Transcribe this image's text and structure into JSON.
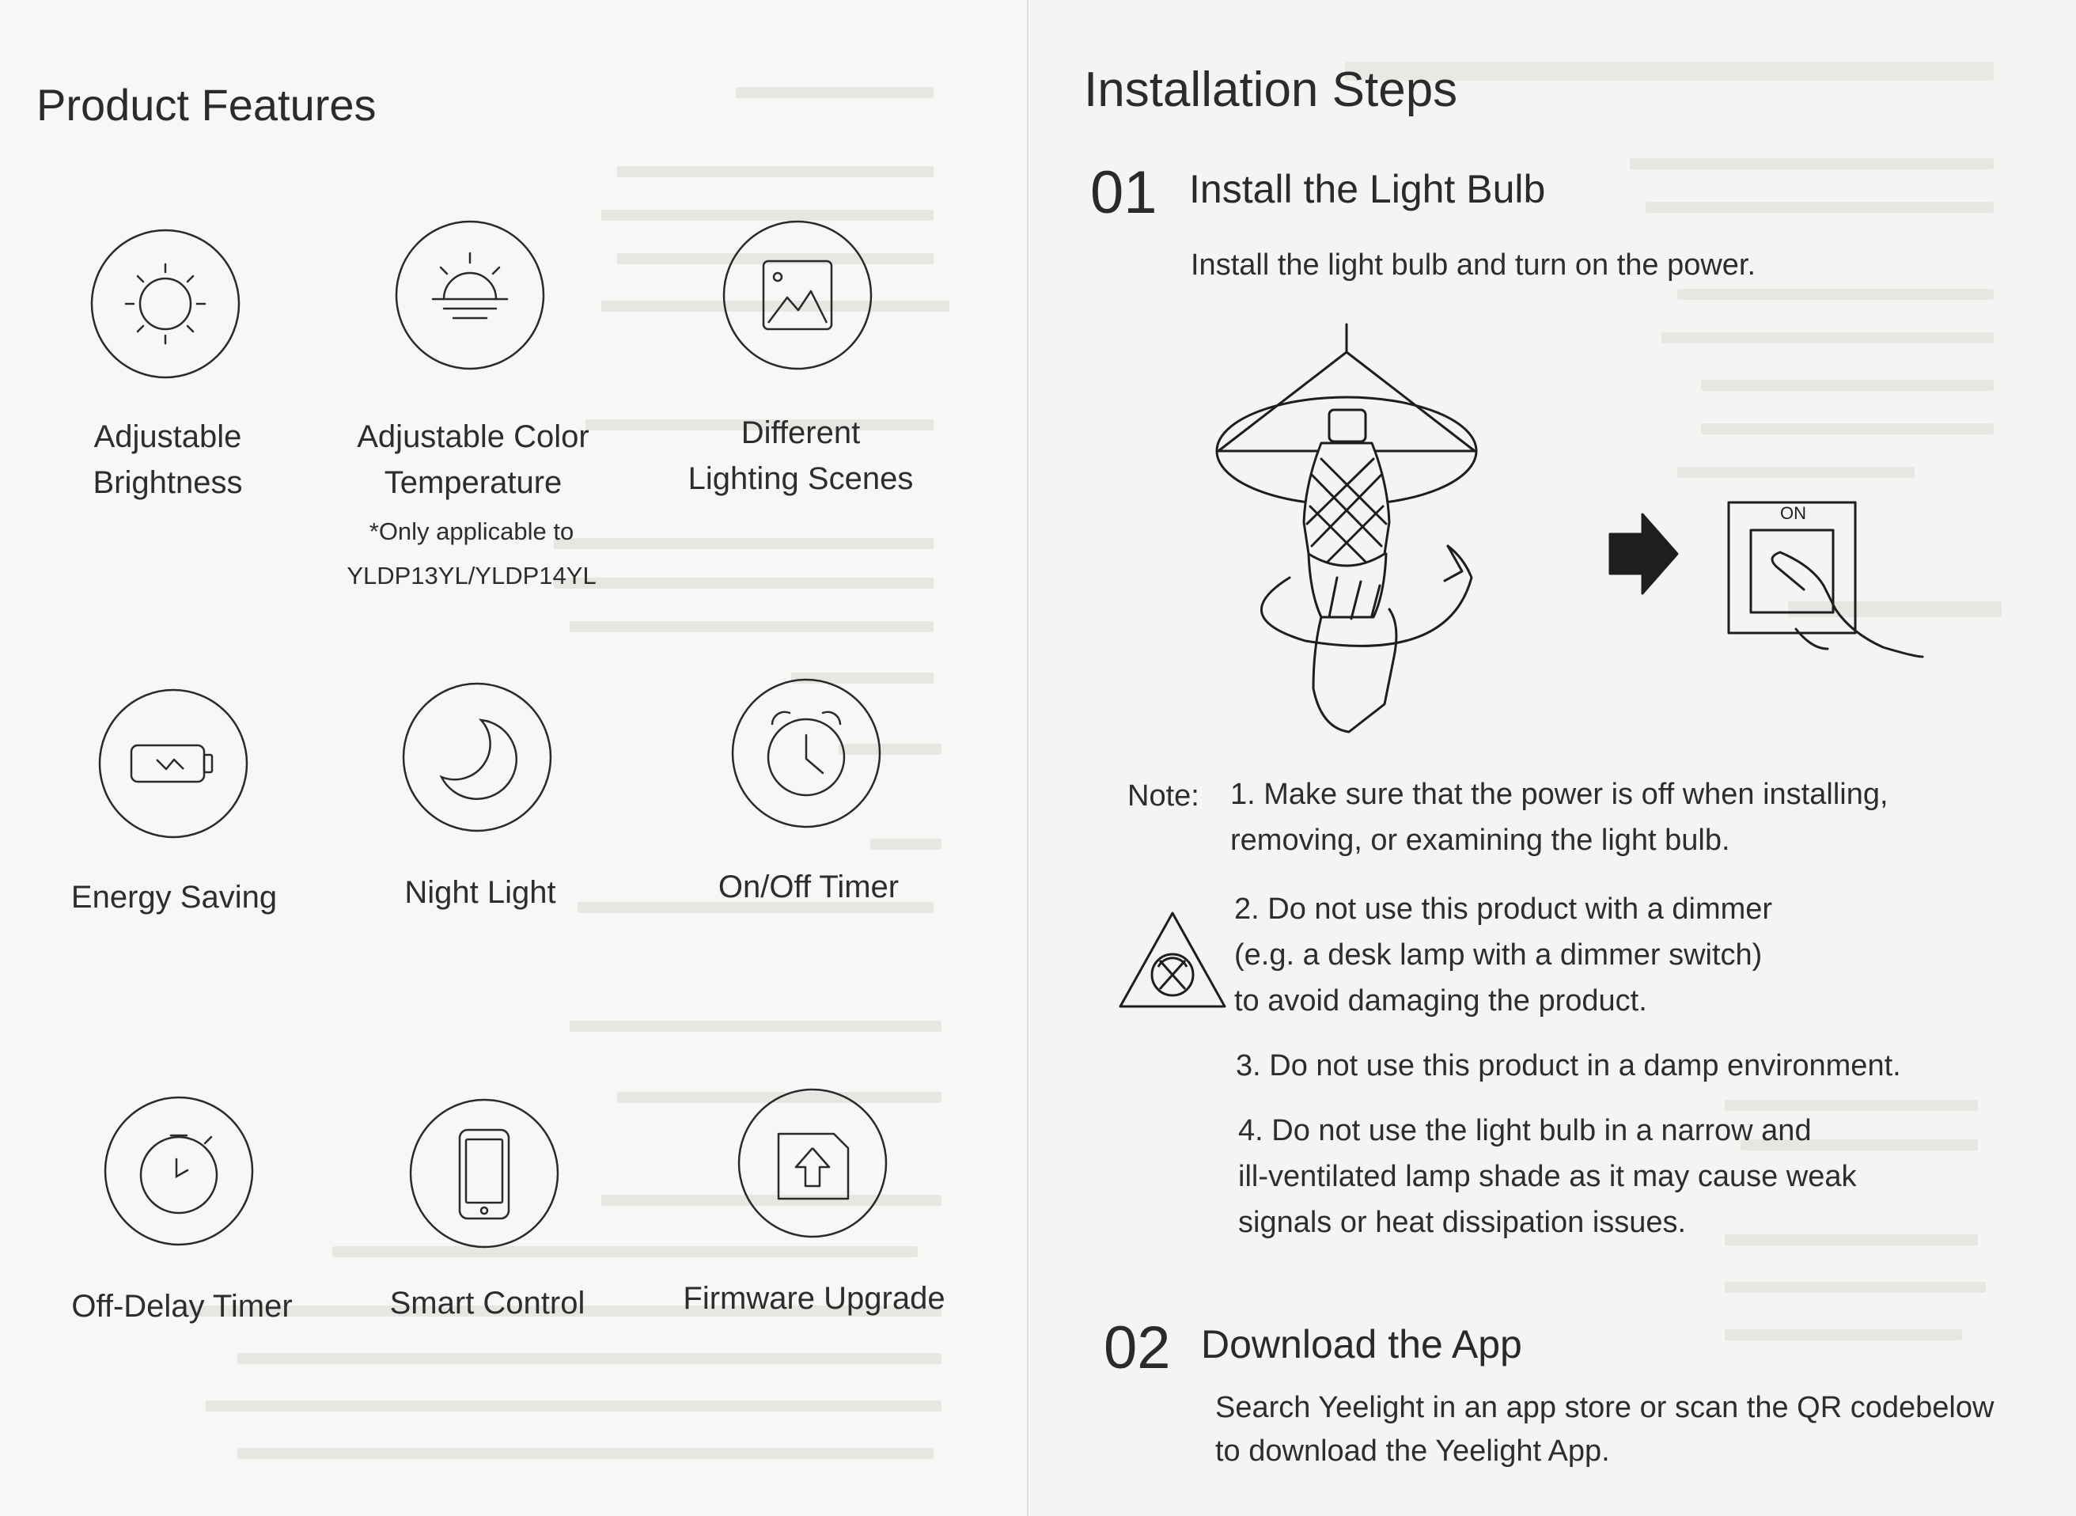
{
  "features": {
    "title": "Product Features",
    "items": [
      {
        "label": "Adjustable\nBrightness",
        "icon": "sun-icon"
      },
      {
        "label": "Adjustable Color\nTemperature",
        "icon": "sunrise-icon",
        "note": "*Only applicable to\nYLDP13YL/YLDP14YL"
      },
      {
        "label": "Different\nLighting Scenes",
        "icon": "picture-icon"
      },
      {
        "label": "Energy Saving",
        "icon": "battery-icon"
      },
      {
        "label": "Night Light",
        "icon": "moon-icon"
      },
      {
        "label": "On/Off Timer",
        "icon": "alarm-clock-icon"
      },
      {
        "label": "Off-Delay Timer",
        "icon": "stopwatch-icon"
      },
      {
        "label": "Smart Control",
        "icon": "phone-icon"
      },
      {
        "label": "Firmware Upgrade",
        "icon": "chip-upgrade-icon"
      }
    ]
  },
  "installation": {
    "title": "Installation Steps",
    "step1": {
      "number": "01",
      "title": "Install the Light Bulb",
      "text": "Install the light bulb and turn on the power.",
      "switch_label": "ON"
    },
    "note_label": "Note:",
    "notes": [
      "1. Make sure that the power is off when installing,\n    removing, or examining the light bulb.",
      "2. Do not use this product with a dimmer\n    (e.g. a desk lamp with a dimmer switch)\n    to avoid damaging the product.",
      "3. Do not use this product in a damp environment.",
      "4. Do not use the light bulb in a narrow and\n    ill-ventilated lamp shade as it may cause weak\n    signals or heat dissipation issues."
    ],
    "step2": {
      "number": "02",
      "title": "Download the App",
      "text_line1": "Search Yeelight in an app store or scan the QR codebelow",
      "text_line2": "to download the Yeelight App."
    }
  }
}
